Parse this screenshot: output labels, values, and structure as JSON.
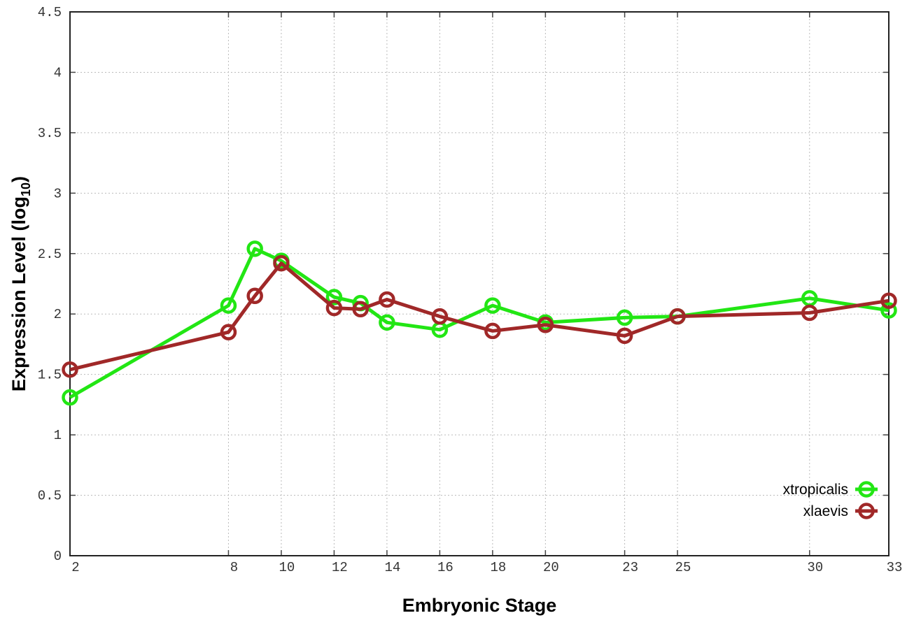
{
  "chart_data": {
    "type": "line",
    "xlabel": "Embryonic Stage",
    "ylabel": "Expression Level (log",
    "ylabel_subscript": "10",
    "ylabel_suffix": ")",
    "xlim": [
      2,
      33
    ],
    "ylim": [
      0,
      4.5
    ],
    "xticks": [
      2,
      8,
      10,
      12,
      14,
      16,
      18,
      20,
      23,
      25,
      30,
      33
    ],
    "yticks": [
      0,
      0.5,
      1,
      1.5,
      2,
      2.5,
      3,
      3.5,
      4,
      4.5
    ],
    "ytick_labels": [
      "0",
      "0.5",
      "1",
      "1.5",
      "2",
      "2.5",
      "3",
      "3.5",
      "4",
      "4.5"
    ],
    "grid": true,
    "legend_position": "bottom-right",
    "x": [
      2,
      8,
      9,
      10,
      12,
      13,
      14,
      16,
      18,
      20,
      23,
      25,
      30,
      33
    ],
    "series": [
      {
        "name": "xtropicalis",
        "color": "#22e614",
        "values": [
          1.31,
          2.07,
          2.54,
          2.44,
          2.14,
          2.09,
          1.93,
          1.87,
          2.07,
          1.93,
          1.97,
          1.98,
          2.13,
          2.03
        ]
      },
      {
        "name": "xlaevis",
        "color": "#a02828",
        "values": [
          1.54,
          1.85,
          2.15,
          2.42,
          2.05,
          2.04,
          2.12,
          1.98,
          1.86,
          1.91,
          1.82,
          1.98,
          2.01,
          2.11
        ]
      }
    ]
  }
}
